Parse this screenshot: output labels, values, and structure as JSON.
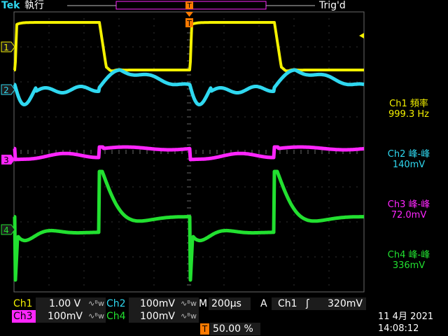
{
  "header": {
    "brand": "Tek",
    "run_state": "執行",
    "trigger_status": "Trig'd"
  },
  "colors": {
    "ch1": "#f4f100",
    "ch2": "#2fd8f0",
    "ch3": "#ff26ff",
    "ch4": "#22e030",
    "accent": "#ff7a00",
    "grid": "#6a6a6a",
    "label_bg": "#1c1c1c"
  },
  "channels": [
    {
      "id": "1",
      "label": "1"
    },
    {
      "id": "2",
      "label": "2"
    },
    {
      "id": "3",
      "label": "3"
    },
    {
      "id": "4",
      "label": "4"
    }
  ],
  "trigger": {
    "marker": "T",
    "position_marker": "T"
  },
  "measurements": [
    {
      "name": "Ch1 頻率",
      "value": "999.3 Hz"
    },
    {
      "name": "Ch2 峰-峰",
      "value": "140mV"
    },
    {
      "name": "Ch3 峰-峰",
      "value": "72.0mV"
    },
    {
      "name": "Ch4 峰-峰",
      "value": "336mV"
    }
  ],
  "settings": {
    "ch1_label": "Ch1",
    "ch1_scale": "1.00 V",
    "ch1_coupling": "∿ᴮw",
    "ch2_label": "Ch2",
    "ch2_scale": "100mV",
    "ch2_coupling": "∿ᴮw",
    "ch3_label": "Ch3",
    "ch3_scale": "100mV",
    "ch3_coupling": "∿ᴮw",
    "ch4_label": "Ch4",
    "ch4_scale": "100mV",
    "ch4_coupling": "∿ᴮw",
    "timebase_label": "M",
    "timebase": "200µs",
    "trigger_mode": "A",
    "trigger_source": "Ch1",
    "trigger_slope": "ʃ",
    "trigger_level": "320mV",
    "trigger_pos_marker": "T",
    "trigger_pos": "50.00 %"
  },
  "datetime": {
    "date": "11 4月  2021",
    "time": "14:08:12"
  }
}
